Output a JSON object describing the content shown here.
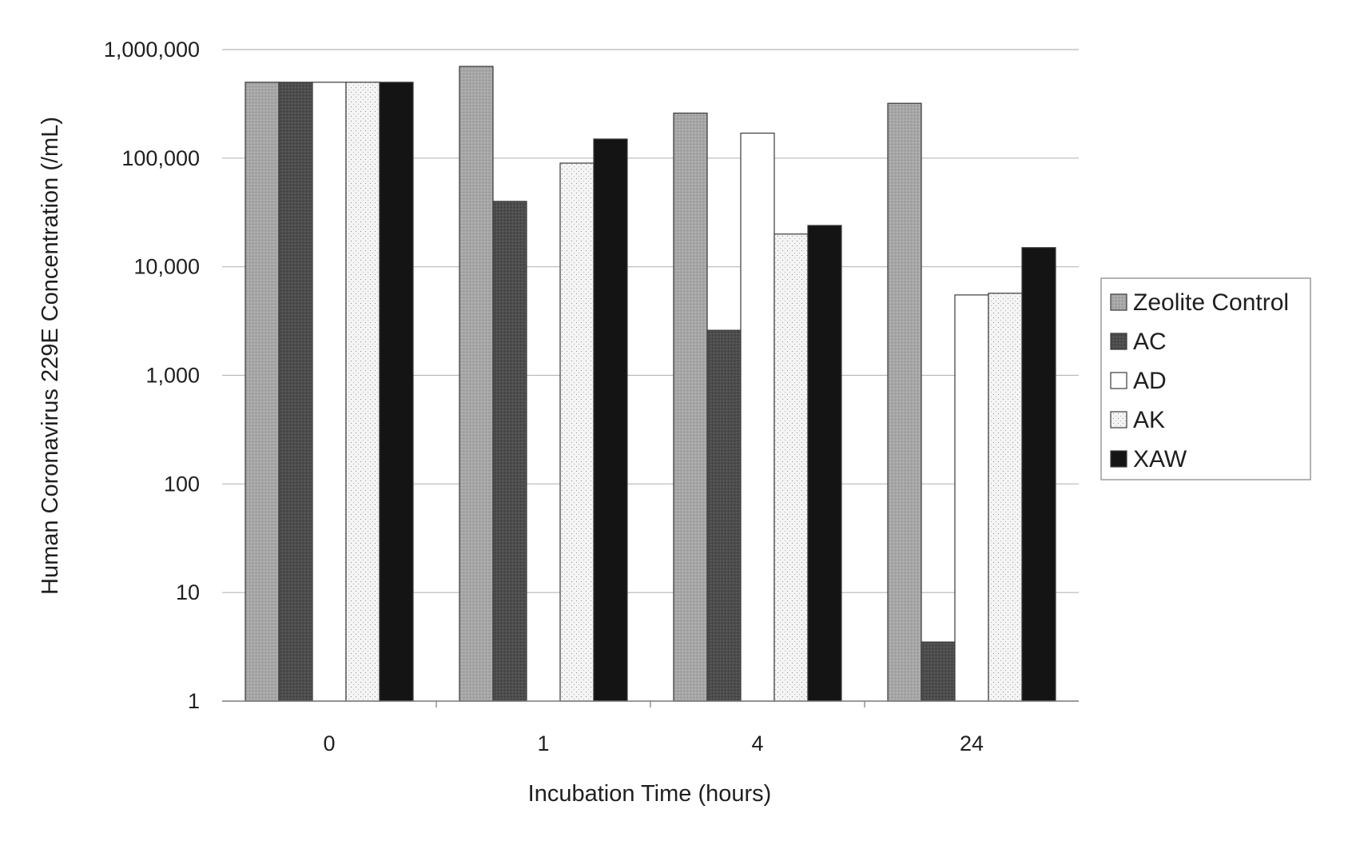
{
  "chart_data": {
    "type": "bar",
    "title": "",
    "xlabel": "Incubation Time (hours)",
    "ylabel": "Human Coronavirus 229E Concentration (/mL)",
    "yscale": "log",
    "ylim": [
      1,
      1000000
    ],
    "yticks": [
      1,
      10,
      100,
      1000,
      10000,
      100000,
      1000000
    ],
    "ytick_labels": [
      "1",
      "10",
      "100",
      "1,000",
      "10,000",
      "100,000",
      "1,000,000"
    ],
    "categories": [
      "0",
      "1",
      "4",
      "24"
    ],
    "grid": true,
    "legend_position": "right",
    "series": [
      {
        "name": "Zeolite Control",
        "values": [
          500000,
          700000,
          260000,
          320000
        ],
        "fill": "#a6a6a6",
        "pattern": "light-stipple"
      },
      {
        "name": "AC",
        "values": [
          500000,
          40000,
          2600,
          3.5
        ],
        "fill": "#4d4d4d",
        "pattern": "dark-stipple"
      },
      {
        "name": "AD",
        "values": [
          500000,
          1,
          170000,
          5500
        ],
        "fill": "#ffffff",
        "pattern": "none"
      },
      {
        "name": "AK",
        "values": [
          500000,
          90000,
          20000,
          5700
        ],
        "fill": "#f0f0f0",
        "pattern": "sparse-dots"
      },
      {
        "name": "XAW",
        "values": [
          500000,
          150000,
          24000,
          15000
        ],
        "fill": "#141414",
        "pattern": "solid"
      }
    ]
  }
}
